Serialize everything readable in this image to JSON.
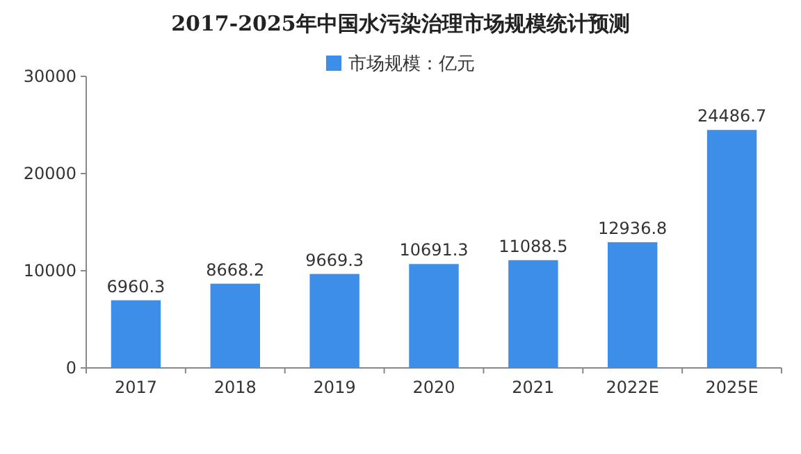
{
  "chart_data": {
    "type": "bar",
    "title": "2017-2025年中国水污染治理市场规模统计预测",
    "categories": [
      "2017",
      "2018",
      "2019",
      "2020",
      "2021",
      "2022E",
      "2025E"
    ],
    "series": [
      {
        "name": "市场规模：亿元",
        "color": "#3d8ee8",
        "values": [
          6960.3,
          8668.2,
          9669.3,
          10691.3,
          11088.5,
          12936.8,
          24486.7
        ]
      }
    ],
    "ylim": [
      0,
      30000
    ],
    "yticks": [
      0,
      10000,
      20000,
      30000
    ],
    "data_labels": true,
    "legend": "top"
  }
}
